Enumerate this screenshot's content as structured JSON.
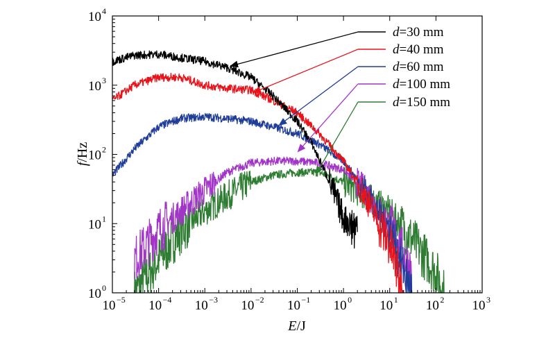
{
  "chart_data": {
    "type": "line",
    "xlabel": {
      "var": "E",
      "unit": "/J"
    },
    "ylabel": {
      "var": "f",
      "unit": "/Hz"
    },
    "x_scale": "log",
    "y_scale": "log",
    "xlim": [
      1e-05,
      1000
    ],
    "ylim": [
      1,
      10000
    ],
    "x_ticks": [
      {
        "base": "10",
        "exp": "−5",
        "value": 1e-05
      },
      {
        "base": "10",
        "exp": "−4",
        "value": 0.0001
      },
      {
        "base": "10",
        "exp": "−3",
        "value": 0.001
      },
      {
        "base": "10",
        "exp": "−2",
        "value": 0.01
      },
      {
        "base": "10",
        "exp": "−1",
        "value": 0.1
      },
      {
        "base": "10",
        "exp": "0",
        "value": 1
      },
      {
        "base": "10",
        "exp": "1",
        "value": 10
      },
      {
        "base": "10",
        "exp": "2",
        "value": 100
      },
      {
        "base": "10",
        "exp": "3",
        "value": 1000
      }
    ],
    "y_ticks": [
      {
        "base": "10",
        "exp": "0",
        "value": 1
      },
      {
        "base": "10",
        "exp": "1",
        "value": 10
      },
      {
        "base": "10",
        "exp": "2",
        "value": 100
      },
      {
        "base": "10",
        "exp": "3",
        "value": 1000
      },
      {
        "base": "10",
        "exp": "4",
        "value": 10000
      }
    ],
    "grid": false,
    "legend_position": "top-right",
    "series": [
      {
        "var": "d",
        "label": "=30 mm",
        "color": "#000000",
        "x": [
          1e-05,
          3e-05,
          0.0001,
          0.0003,
          0.001,
          0.003,
          0.01,
          0.03,
          0.1,
          0.2,
          0.5,
          1,
          2
        ],
        "y": [
          2200,
          2700,
          2800,
          2500,
          2200,
          1800,
          1300,
          700,
          300,
          150,
          40,
          12,
          8
        ]
      },
      {
        "var": "d",
        "label": "=40 mm",
        "color": "#e8141c",
        "x": [
          1e-05,
          3e-05,
          0.0001,
          0.0003,
          0.001,
          0.003,
          0.01,
          0.03,
          0.1,
          0.3,
          1,
          3,
          10,
          20
        ],
        "y": [
          600,
          1000,
          1300,
          1300,
          1000,
          900,
          850,
          600,
          400,
          200,
          80,
          25,
          5,
          1
        ]
      },
      {
        "var": "d",
        "label": "=60 mm",
        "color": "#1f3d99",
        "x": [
          1e-05,
          3e-05,
          0.0001,
          0.0003,
          0.001,
          0.003,
          0.01,
          0.03,
          0.1,
          0.3,
          1,
          3,
          10,
          30
        ],
        "y": [
          50,
          120,
          250,
          330,
          350,
          330,
          300,
          250,
          200,
          140,
          80,
          30,
          8,
          1
        ]
      },
      {
        "var": "d",
        "label": "=100 mm",
        "color": "#a235c8",
        "x": [
          3e-05,
          0.0001,
          0.0003,
          0.001,
          0.003,
          0.01,
          0.03,
          0.1,
          0.3,
          1,
          3,
          10,
          30
        ],
        "y": [
          3,
          8,
          15,
          30,
          55,
          75,
          80,
          80,
          75,
          60,
          30,
          10,
          2
        ]
      },
      {
        "var": "d",
        "label": "=150 mm",
        "color": "#2e7d32",
        "x": [
          3e-05,
          0.0001,
          0.0003,
          0.001,
          0.003,
          0.01,
          0.03,
          0.1,
          0.3,
          1,
          3,
          10,
          30,
          100,
          150
        ],
        "y": [
          1,
          3,
          8,
          15,
          25,
          40,
          50,
          55,
          55,
          40,
          25,
          15,
          6,
          2,
          1
        ]
      }
    ],
    "annotations": "arrows from each legend label to its curve"
  }
}
